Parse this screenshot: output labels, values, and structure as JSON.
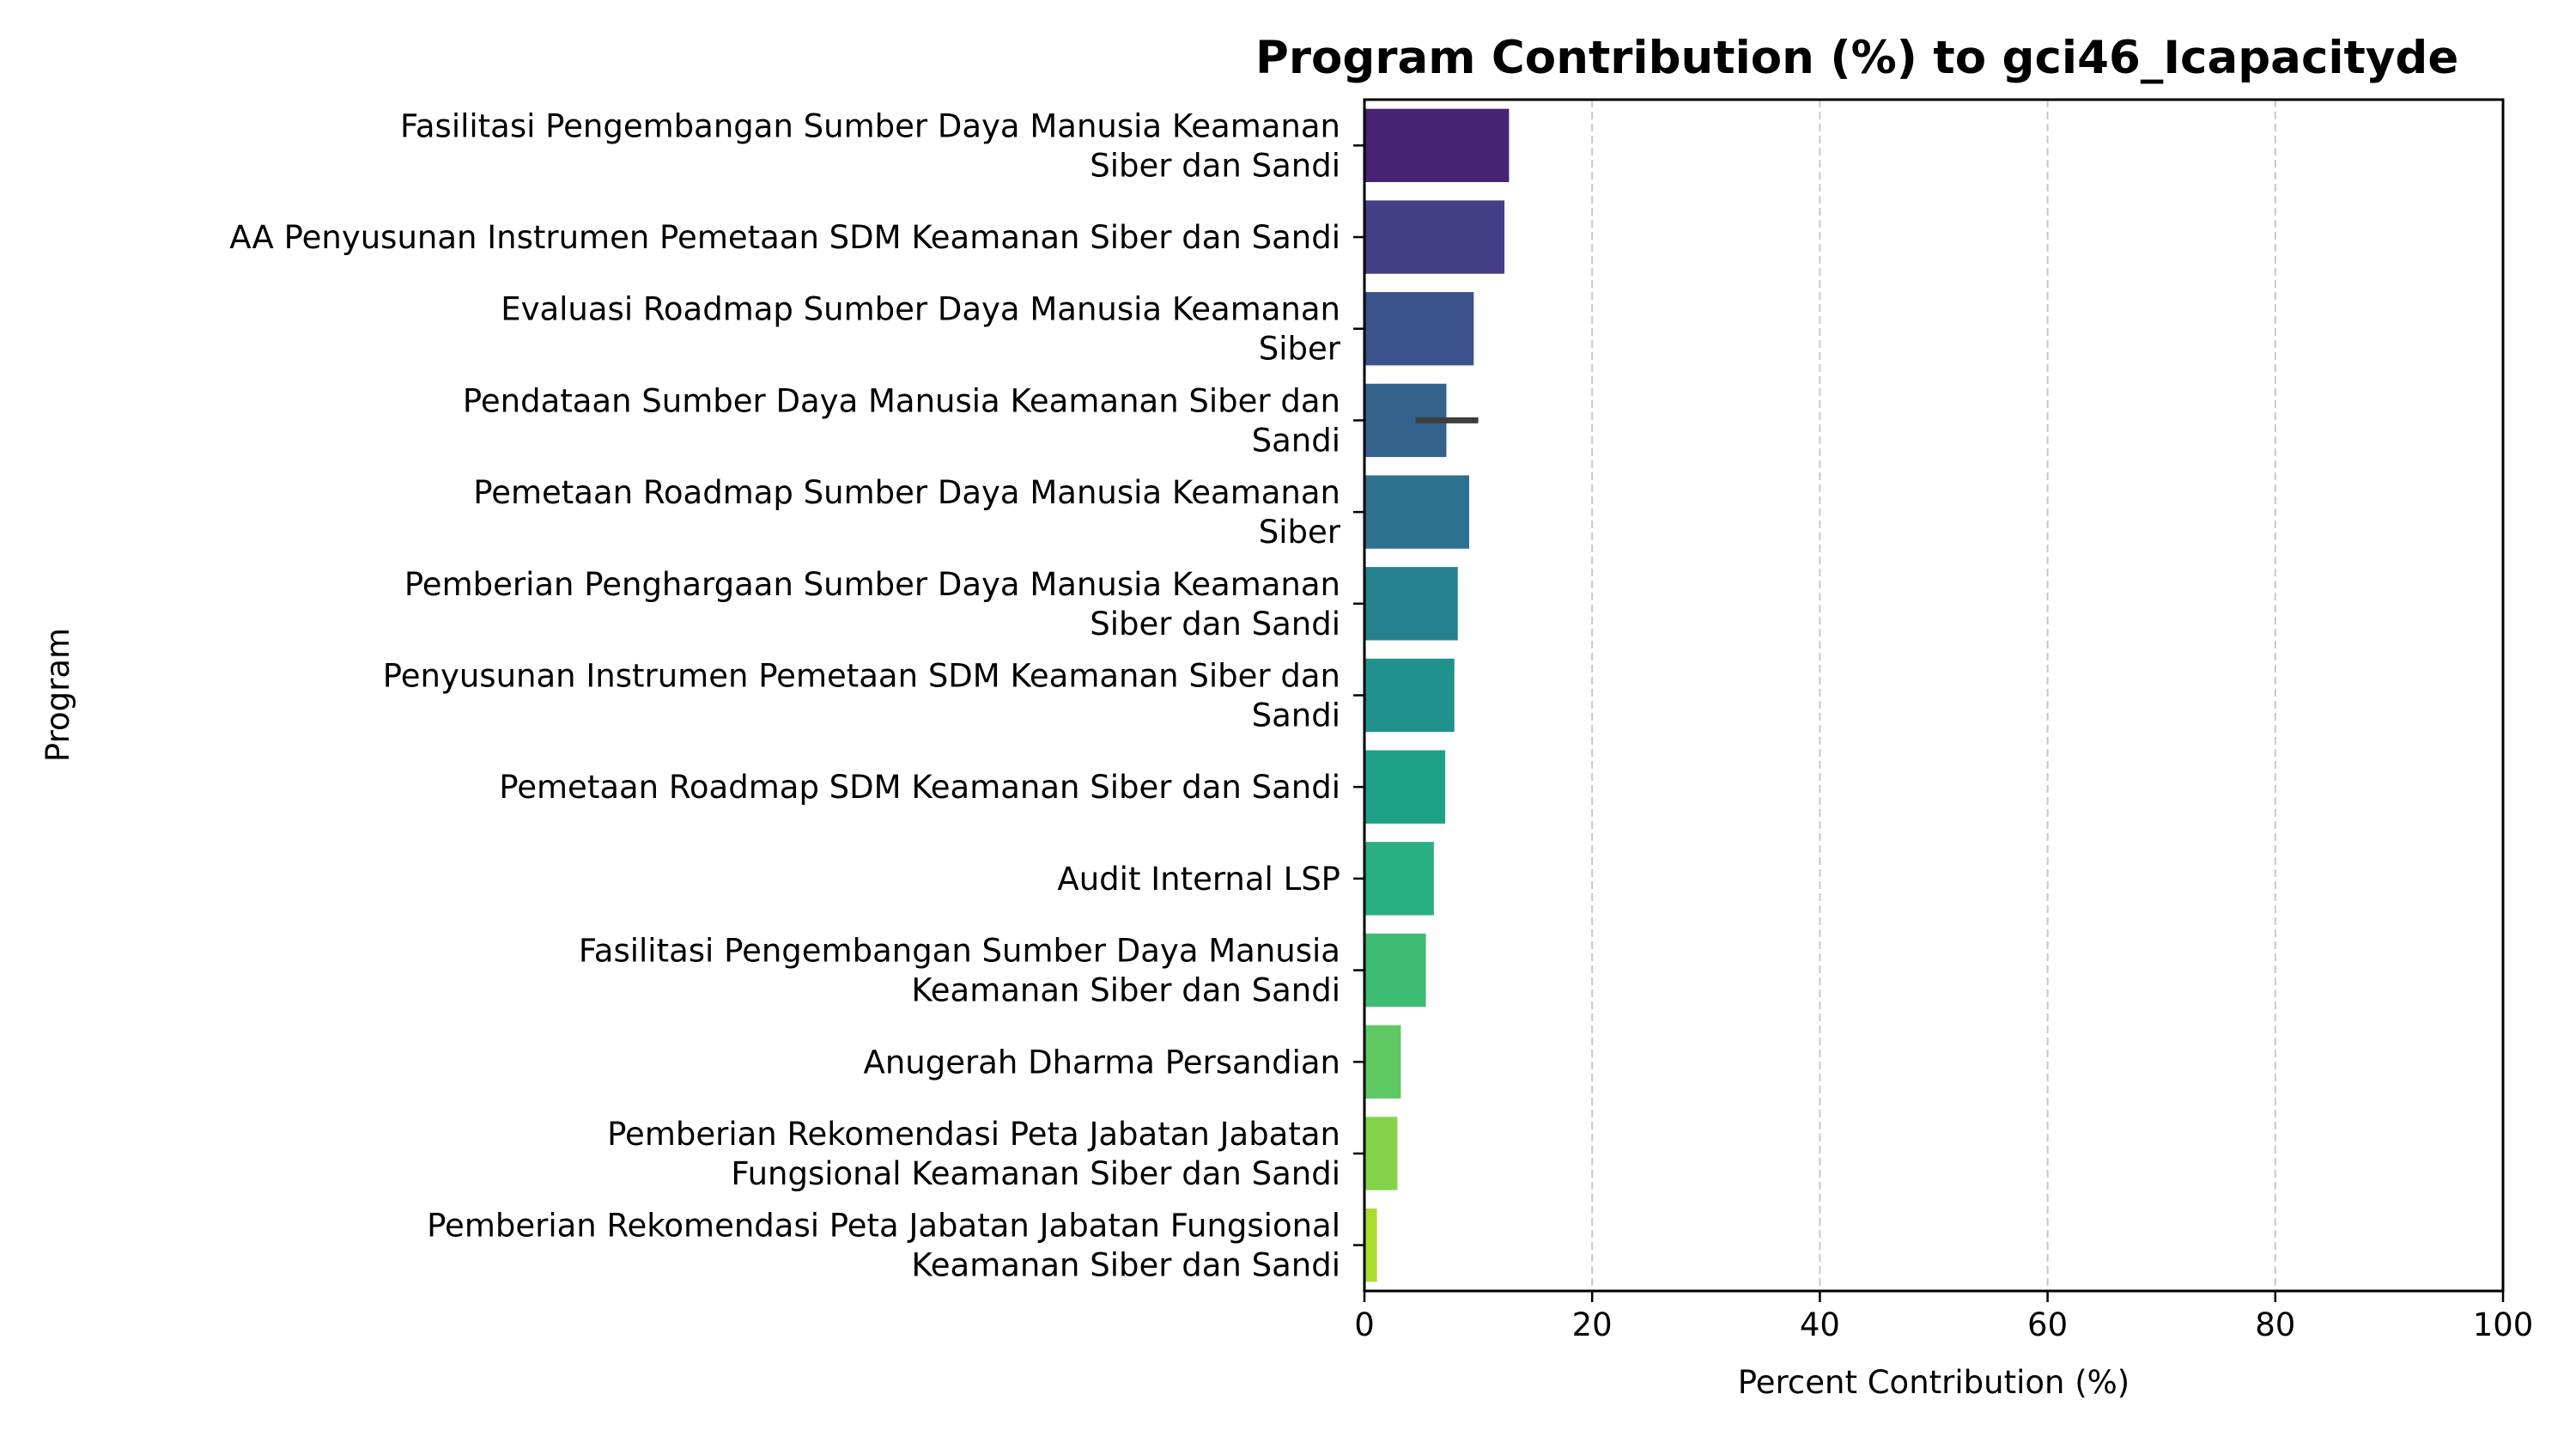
{
  "chart_data": {
    "type": "bar",
    "orientation": "horizontal",
    "title": "Program Contribution (%) to gci46_Icapacityde",
    "xlabel": "Percent Contribution (%)",
    "ylabel": "Program",
    "xlim": [
      0,
      100
    ],
    "xticks": [
      "0",
      "20",
      "40",
      "60",
      "80",
      "100"
    ],
    "grid": "x-dashed",
    "palette": "viridis",
    "categories": [
      [
        "Fasilitasi Pengembangan Sumber Daya Manusia Keamanan",
        "Siber dan Sandi"
      ],
      [
        "AA Penyusunan Instrumen Pemetaan SDM Keamanan Siber dan Sandi"
      ],
      [
        "Evaluasi Roadmap Sumber Daya Manusia Keamanan",
        "Siber"
      ],
      [
        "Pendataan Sumber Daya Manusia Keamanan Siber dan",
        "Sandi"
      ],
      [
        "Pemetaan Roadmap Sumber Daya Manusia Keamanan",
        "Siber"
      ],
      [
        "Pemberian Penghargaan Sumber Daya Manusia Keamanan",
        "Siber dan Sandi"
      ],
      [
        "Penyusunan Instrumen Pemetaan SDM Keamanan Siber dan",
        "Sandi"
      ],
      [
        "Pemetaan Roadmap SDM Keamanan Siber dan Sandi"
      ],
      [
        "Audit Internal LSP"
      ],
      [
        "Fasilitasi Pengembangan Sumber Daya Manusia",
        "Keamanan Siber dan Sandi"
      ],
      [
        "Anugerah Dharma Persandian"
      ],
      [
        "Pemberian Rekomendasi Peta Jabatan Jabatan",
        "Fungsional Keamanan Siber dan Sandi"
      ],
      [
        "Pemberian Rekomendasi Peta Jabatan Jabatan Fungsional",
        "Keamanan Siber dan Sandi"
      ]
    ],
    "values": [
      12.7,
      12.3,
      9.6,
      7.2,
      9.2,
      8.2,
      7.9,
      7.1,
      6.1,
      5.4,
      3.2,
      2.9,
      1.1
    ],
    "error_bars": [
      null,
      null,
      null,
      [
        4.5,
        10.0
      ],
      null,
      null,
      null,
      null,
      null,
      null,
      null,
      null,
      null
    ],
    "colors": [
      "#482173",
      "#433e85",
      "#3b528b",
      "#33638d",
      "#2c728e",
      "#26828e",
      "#21918c",
      "#1fa088",
      "#28ae80",
      "#3fbc73",
      "#5ec962",
      "#84d44b",
      "#addc30"
    ]
  }
}
